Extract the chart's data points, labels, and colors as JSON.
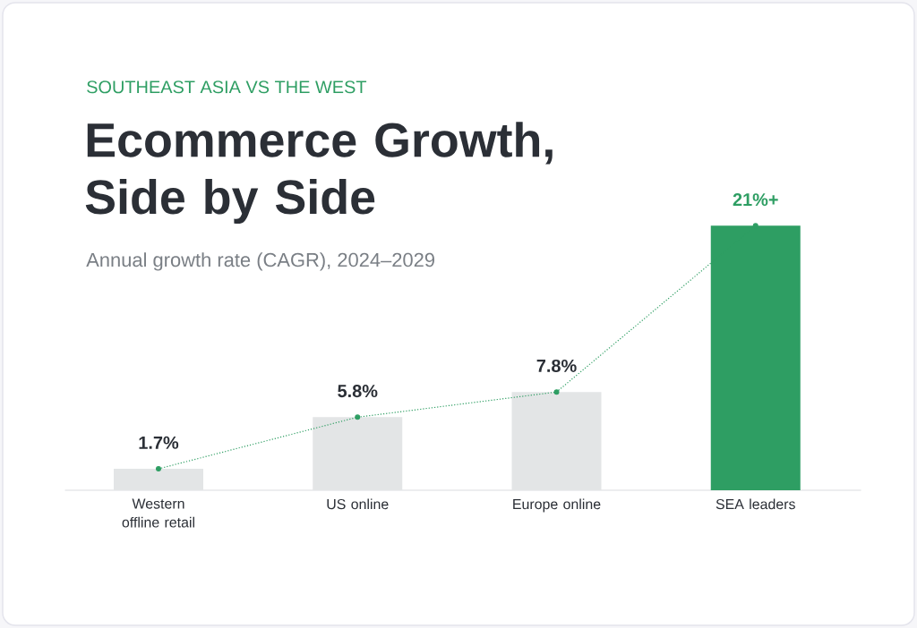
{
  "chart_data": {
    "type": "bar",
    "annotations": [
      "SOUTHEAST ASIA VS THE WEST"
    ],
    "title": "Ecommerce Growth, Side by Side",
    "subtitle": "Annual growth rate (CAGR), 2024–2029",
    "categories": [
      "Western offline retail",
      "US online",
      "Europe online",
      "SEA leaders"
    ],
    "series": [
      {
        "type": "bar",
        "values": [
          1.7,
          5.8,
          7.8,
          21
        ],
        "colors": [
          "#e3e5e6",
          "#e3e5e6",
          "#e3e5e6",
          "#2e9e63"
        ],
        "value_labels": [
          "1.7%",
          "5.8%",
          "7.8%",
          "21%+"
        ]
      },
      {
        "type": "line",
        "values": [
          1.7,
          5.8,
          7.8,
          21
        ],
        "color": "#2e9e63",
        "line_style": "dotted",
        "marker": "circle"
      }
    ]
  }
}
